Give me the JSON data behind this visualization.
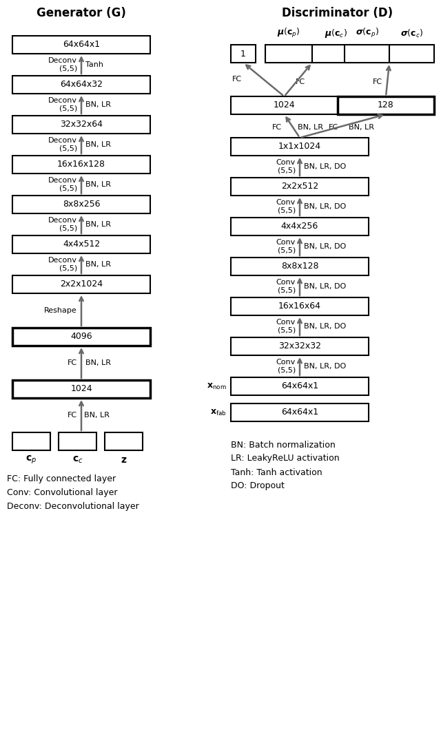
{
  "fig_width": 6.4,
  "fig_height": 10.66,
  "bg_color": "#ffffff",
  "box_edge_color": "#000000",
  "arrow_color": "#696969",
  "text_color": "#000000",
  "gen_title": "Generator (G)",
  "dis_title": "Discriminator (D)",
  "gen_layer_names": [
    "64x64x1",
    "64x64x32",
    "32x32x64",
    "16x16x128",
    "8x8x256",
    "4x4x512",
    "2x2x1024",
    "4096",
    "1024"
  ],
  "gen_ops": [
    [
      "Deconv\n(5,5)",
      "Tanh"
    ],
    [
      "Deconv\n(5,5)",
      "BN, LR"
    ],
    [
      "Deconv\n(5,5)",
      "BN, LR"
    ],
    [
      "Deconv\n(5,5)",
      "BN, LR"
    ],
    [
      "Deconv\n(5,5)",
      "BN, LR"
    ],
    [
      "Deconv\n(5,5)",
      "BN, LR"
    ],
    [
      "Reshape",
      ""
    ],
    [
      "FC",
      "BN, LR"
    ],
    [
      "FC",
      "BN, LR"
    ]
  ],
  "dis_layer_names": [
    "1x1x1024",
    "2x2x512",
    "4x4x256",
    "8x8x128",
    "16x16x64",
    "32x32x32",
    "64x64x1",
    "64x64x1"
  ],
  "dis_ops": [
    [
      "Conv\n(5,5)",
      "BN, LR, DO"
    ],
    [
      "Conv\n(5,5)",
      "BN, LR, DO"
    ],
    [
      "Conv\n(5,5)",
      "BN, LR, DO"
    ],
    [
      "Conv\n(5,5)",
      "BN, LR, DO"
    ],
    [
      "Conv\n(5,5)",
      "BN, LR, DO"
    ],
    [
      "Conv\n(5,5)",
      "BN, LR, DO"
    ]
  ],
  "legend_left": [
    "FC: Fully connected layer",
    "Conv: Convolutional layer",
    "Deconv: Deconvolutional layer"
  ],
  "legend_right": [
    "BN: Batch normalization",
    "LR: LeakyReLU activation",
    "Tanh: Tanh activation",
    "DO: Dropout"
  ]
}
